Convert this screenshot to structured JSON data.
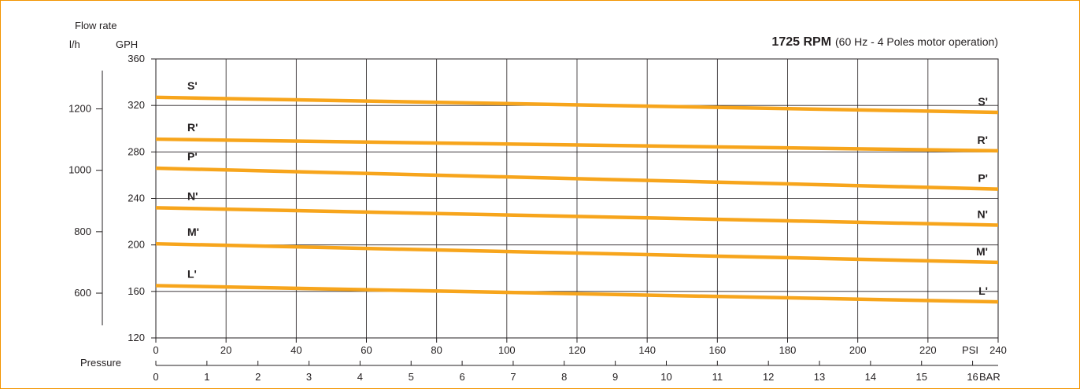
{
  "chart_data": {
    "type": "line",
    "title_bold": "1725 RPM",
    "title_detail": "(60 Hz - 4 Poles motor operation)",
    "ylabel_top": "Flow rate",
    "ylabel_lh": "l/h",
    "ylabel_gph": "GPH",
    "xlabel": "Pressure",
    "x_unit_psi": "PSI",
    "x_unit_bar": "BAR",
    "psi_ticks": [
      0,
      20,
      40,
      60,
      80,
      100,
      120,
      140,
      160,
      180,
      200,
      220,
      240
    ],
    "bar_ticks": [
      0,
      1,
      2,
      3,
      4,
      5,
      6,
      7,
      8,
      9,
      10,
      11,
      12,
      13,
      14,
      15,
      16
    ],
    "gph_ticks": [
      120,
      160,
      200,
      240,
      280,
      320,
      360
    ],
    "lh_ticks": [
      600,
      800,
      1000,
      1200
    ],
    "xlim_psi": [
      0,
      240
    ],
    "ylim_gph": [
      120,
      360
    ],
    "grid": true,
    "series": [
      {
        "name": "S'",
        "psi": [
          0,
          240
        ],
        "gph": [
          327,
          314
        ]
      },
      {
        "name": "R'",
        "psi": [
          0,
          240
        ],
        "gph": [
          291,
          281
        ]
      },
      {
        "name": "P'",
        "psi": [
          0,
          240
        ],
        "gph": [
          266,
          248
        ]
      },
      {
        "name": "N'",
        "psi": [
          0,
          240
        ],
        "gph": [
          232,
          217
        ]
      },
      {
        "name": "M'",
        "psi": [
          0,
          240
        ],
        "gph": [
          201,
          185
        ]
      },
      {
        "name": "L'",
        "psi": [
          0,
          240
        ],
        "gph": [
          165,
          151
        ]
      }
    ],
    "colors": {
      "curve": "#f7a51c",
      "grid": "#231f20",
      "frame": "#f29400"
    }
  }
}
